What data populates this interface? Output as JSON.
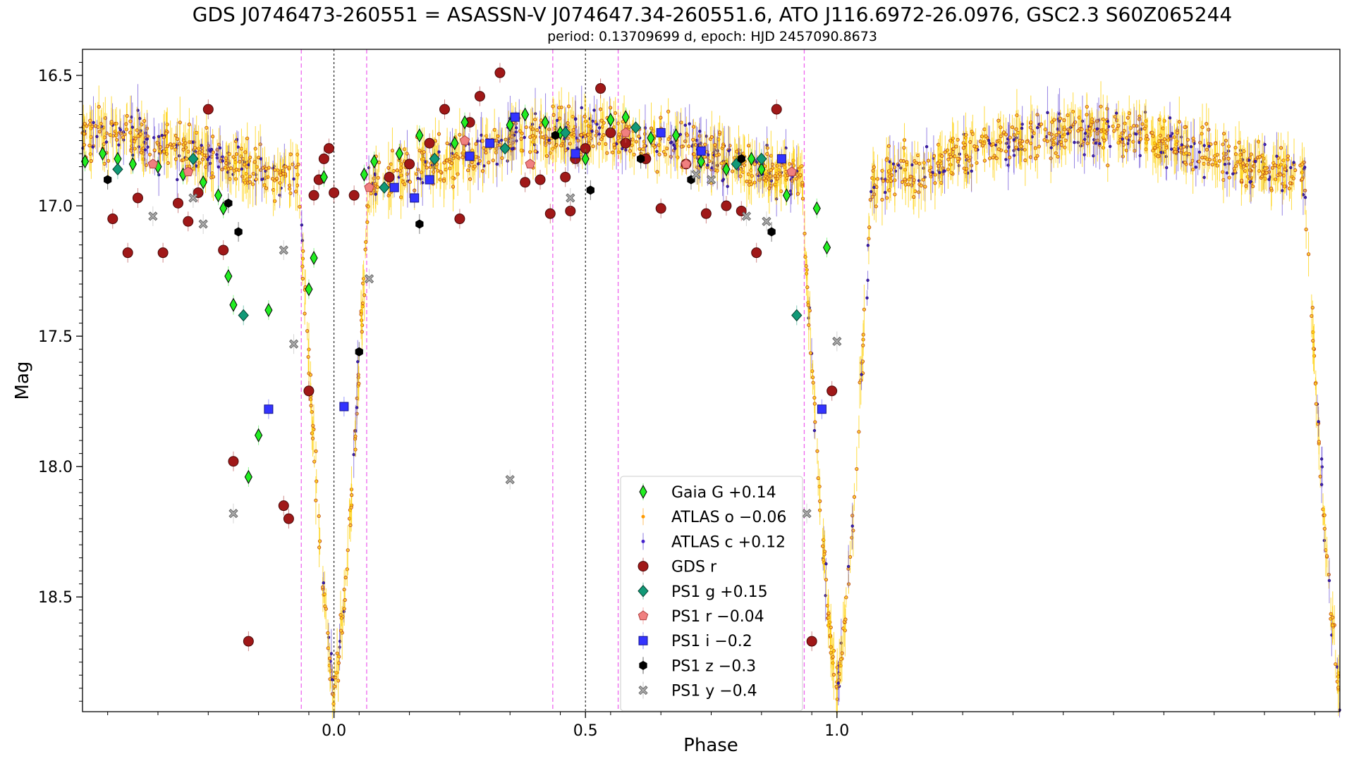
{
  "chart_data": {
    "type": "scatter",
    "title": "GDS J0746473-260551 = ASASSN-V J074647.34-260551.6, ATO J116.6972-26.0976, GSC2.3 S60Z065244",
    "subtitle": "period: 0.13709699 d, epoch: HJD 2457090.8673",
    "xlabel": "Phase",
    "ylabel": "Mag",
    "xlim": [
      -0.5,
      2.0
    ],
    "ylim": [
      18.94,
      16.4
    ],
    "y_inverted": true,
    "xticks": [
      {
        "value": 0.0,
        "label": "0.0"
      },
      {
        "value": 0.5,
        "label": "0.5"
      },
      {
        "value": 1.0,
        "label": "1.0"
      }
    ],
    "yticks": [
      {
        "value": 16.5,
        "label": "16.5"
      },
      {
        "value": 17.0,
        "label": "17.0"
      },
      {
        "value": 17.5,
        "label": "17.5"
      },
      {
        "value": 18.0,
        "label": "18.0"
      },
      {
        "value": 18.5,
        "label": "18.5"
      }
    ],
    "vlines_black": [
      0.0,
      0.5
    ],
    "vlines_magenta": [
      -0.065,
      0.065,
      0.435,
      0.565,
      0.935
    ],
    "legend_position": "lower center",
    "legend": [
      {
        "label": "Gaia G +0.14",
        "marker": "thin_diamond",
        "color": "#22ee22"
      },
      {
        "label": "ATLAS o −0.06",
        "marker": "small_dot",
        "color": "#ff9900"
      },
      {
        "label": "ATLAS c +0.12",
        "marker": "small_dot",
        "color": "#4422cc"
      },
      {
        "label": "GDS r",
        "marker": "circle",
        "color": "#a01818"
      },
      {
        "label": "PS1 g +0.15",
        "marker": "diamond",
        "color": "#119977"
      },
      {
        "label": "PS1 r −0.04",
        "marker": "pentagon",
        "color": "#f08080"
      },
      {
        "label": "PS1 i −0.2",
        "marker": "square",
        "color": "#3333ff"
      },
      {
        "label": "PS1 z −0.3",
        "marker": "hexagon",
        "color": "#000000"
      },
      {
        "label": "PS1 y −0.4",
        "marker": "x_filled",
        "color": "#aaaaaa"
      }
    ],
    "series": [
      {
        "name": "GDS r",
        "color": "#a01818",
        "marker": "circle",
        "x": [
          -0.44,
          -0.41,
          -0.39,
          -0.34,
          -0.31,
          -0.29,
          -0.27,
          -0.25,
          -0.22,
          -0.2,
          -0.17,
          -0.1,
          -0.09,
          -0.05,
          -0.04,
          -0.03,
          -0.02,
          -0.01,
          0.0,
          0.04,
          0.11,
          0.15,
          0.19,
          0.22,
          0.25,
          0.27,
          0.29,
          0.33,
          0.38,
          0.41,
          0.43,
          0.46,
          0.47,
          0.48,
          0.5,
          0.53,
          0.55,
          0.58,
          0.62,
          0.65,
          0.7,
          0.74,
          0.78,
          0.81,
          0.84,
          0.88,
          0.95,
          0.99
        ],
        "y": [
          17.05,
          17.18,
          16.97,
          17.18,
          16.99,
          17.06,
          16.95,
          16.63,
          17.17,
          17.98,
          18.67,
          18.15,
          18.2,
          17.71,
          16.96,
          16.9,
          16.82,
          16.78,
          16.95,
          16.96,
          16.89,
          16.84,
          16.76,
          16.63,
          17.05,
          16.68,
          16.58,
          16.49,
          16.91,
          16.9,
          17.03,
          16.89,
          17.02,
          16.82,
          16.78,
          16.55,
          16.72,
          16.76,
          16.82,
          17.01,
          16.84,
          17.03,
          17.0,
          17.02,
          17.18,
          16.63,
          18.67,
          17.71
        ]
      },
      {
        "name": "Gaia G +0.14",
        "color": "#22ee22",
        "marker": "thin_diamond",
        "x": [
          -0.495,
          -0.46,
          -0.43,
          -0.4,
          -0.35,
          -0.3,
          -0.26,
          -0.23,
          -0.22,
          -0.21,
          -0.2,
          -0.17,
          -0.15,
          -0.13,
          -0.05,
          -0.04,
          -0.02,
          0.06,
          0.08,
          0.13,
          0.17,
          0.24,
          0.26,
          0.35,
          0.38,
          0.42,
          0.45,
          0.5,
          0.55,
          0.58,
          0.63,
          0.68,
          0.73,
          0.78,
          0.83,
          0.85,
          0.9,
          0.96,
          0.98
        ],
        "y": [
          16.83,
          16.8,
          16.82,
          16.84,
          16.85,
          16.88,
          16.91,
          16.96,
          17.01,
          17.27,
          17.38,
          18.04,
          17.88,
          17.4,
          17.32,
          17.2,
          16.89,
          16.88,
          16.83,
          16.8,
          16.73,
          16.76,
          16.68,
          16.69,
          16.65,
          16.68,
          16.72,
          16.82,
          16.67,
          16.66,
          16.74,
          16.73,
          16.83,
          16.86,
          16.82,
          16.86,
          16.96,
          17.01,
          17.16
        ]
      },
      {
        "name": "PS1 g +0.15",
        "color": "#119977",
        "marker": "diamond",
        "x": [
          -0.28,
          -0.18,
          0.1,
          0.2,
          0.34,
          0.46,
          0.6,
          0.8,
          0.85,
          0.92,
          -0.43
        ],
        "y": [
          16.82,
          17.42,
          16.93,
          16.82,
          16.78,
          16.72,
          16.7,
          16.84,
          16.82,
          17.42,
          16.86
        ]
      },
      {
        "name": "PS1 r −0.04",
        "color": "#f08080",
        "marker": "pentagon",
        "x": [
          -0.36,
          -0.29,
          0.07,
          0.26,
          0.39,
          0.58,
          0.7,
          0.91
        ],
        "y": [
          16.84,
          16.87,
          16.93,
          16.75,
          16.84,
          16.72,
          16.84,
          16.87
        ]
      },
      {
        "name": "PS1 i −0.2",
        "color": "#3333ff",
        "marker": "square",
        "x": [
          -0.13,
          0.02,
          0.12,
          0.16,
          0.19,
          0.27,
          0.31,
          0.36,
          0.48,
          0.65,
          0.73,
          0.89,
          0.97
        ],
        "y": [
          17.78,
          17.77,
          16.93,
          16.97,
          16.9,
          16.81,
          16.76,
          16.66,
          16.8,
          16.72,
          16.79,
          16.82,
          17.78
        ]
      },
      {
        "name": "PS1 z −0.3",
        "color": "#000000",
        "marker": "hexagon",
        "x": [
          -0.45,
          -0.21,
          -0.19,
          0.05,
          0.17,
          0.44,
          0.51,
          0.61,
          0.71,
          0.81,
          0.87
        ],
        "y": [
          16.9,
          16.99,
          17.1,
          17.56,
          17.07,
          16.73,
          16.94,
          16.82,
          16.9,
          16.82,
          17.1
        ]
      },
      {
        "name": "PS1 y −0.4",
        "color": "#aaaaaa",
        "marker": "x_filled",
        "x": [
          -0.36,
          -0.28,
          -0.26,
          -0.2,
          -0.1,
          -0.08,
          0.07,
          0.35,
          0.47,
          0.72,
          0.75,
          0.82,
          0.86,
          0.94,
          1.0
        ],
        "y": [
          17.04,
          16.97,
          17.07,
          18.18,
          17.17,
          17.53,
          17.28,
          18.05,
          16.97,
          16.88,
          16.9,
          17.04,
          17.06,
          18.18,
          17.52
        ]
      }
    ]
  }
}
